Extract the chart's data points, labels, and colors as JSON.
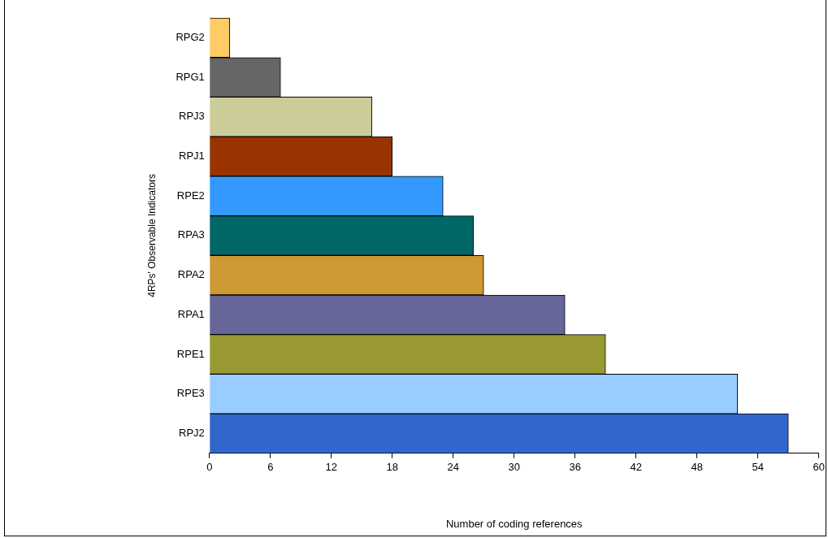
{
  "chart_data": {
    "type": "bar",
    "orientation": "horizontal",
    "xlabel": "Number of coding references",
    "ylabel": "4RPs' Observable Indicators",
    "categories": [
      "RPG2",
      "RPG1",
      "RPJ3",
      "RPJ1",
      "RPE2",
      "RPA3",
      "RPA2",
      "RPA1",
      "RPE1",
      "RPE3",
      "RPJ2"
    ],
    "values": [
      2,
      7,
      16,
      18,
      23,
      26,
      27,
      35,
      39,
      52,
      57
    ],
    "colors": [
      "#ffcc66",
      "#666666",
      "#cccc99",
      "#993300",
      "#3399ff",
      "#006666",
      "#cc9933",
      "#666699",
      "#999933",
      "#99ccff",
      "#3366cc"
    ],
    "xlim": [
      0,
      60
    ],
    "xticks": [
      0,
      6,
      12,
      18,
      24,
      30,
      36,
      42,
      48,
      54,
      60
    ],
    "grid": false,
    "legend": false
  }
}
